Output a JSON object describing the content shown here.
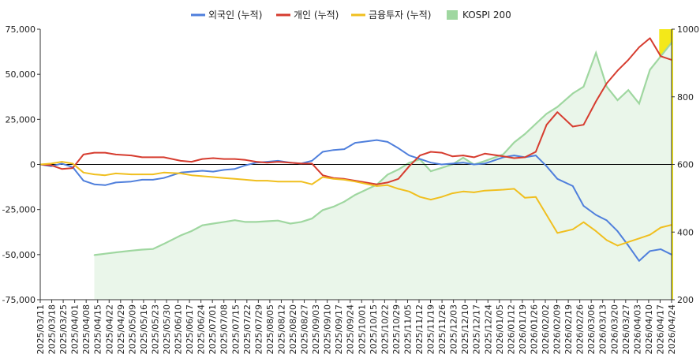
{
  "chart_data": {
    "type": "line",
    "title": "",
    "legend_position": "top-center",
    "legend": [
      {
        "name": "외국인 (누적)",
        "color": "#4f7fdc",
        "kind": "line"
      },
      {
        "name": "개인 (누적)",
        "color": "#d63c2f",
        "kind": "line"
      },
      {
        "name": "금융투자 (누적)",
        "color": "#f0bf1f",
        "kind": "line"
      },
      {
        "name": "KOSPI 200",
        "color": "#9fd7a0",
        "kind": "area"
      }
    ],
    "y_left": {
      "min": -75000,
      "max": 75000,
      "ticks": [
        -75000,
        -50000,
        -25000,
        0,
        25000,
        50000,
        75000
      ],
      "tick_labels": [
        "-75,000",
        "-50,000",
        "-25,000",
        "0",
        "25,000",
        "50,000",
        "75,000"
      ]
    },
    "y_right": {
      "min": 200,
      "max": 1000,
      "ticks": [
        200,
        400,
        600,
        800,
        1000
      ],
      "tick_labels": [
        "200",
        "400",
        "600",
        "800",
        "1000"
      ]
    },
    "x_start": "2025/03/11",
    "x_end": "2026/04/24",
    "x_tick_labels": [
      "2025/03/11",
      "2025/03/18",
      "2025/03/25",
      "2025/04/01",
      "2025/04/08",
      "2025/04/15",
      "2025/04/22",
      "2025/04/29",
      "2025/05/09",
      "2025/05/16",
      "2025/05/23",
      "2025/05/30",
      "2025/06/10",
      "2025/06/17",
      "2025/06/24",
      "2025/07/01",
      "2025/07/08",
      "2025/07/15",
      "2025/07/22",
      "2025/07/29",
      "2025/08/05",
      "2025/08/12",
      "2025/08/20",
      "2025/08/27",
      "2025/09/03",
      "2025/09/10",
      "2025/09/17",
      "2025/09/24",
      "2025/10/01",
      "2025/10/15",
      "2025/10/22",
      "2025/10/29",
      "2025/11/05",
      "2025/11/12",
      "2025/11/19",
      "2025/11/26",
      "2025/12/03",
      "2025/12/10",
      "2025/12/17",
      "2025/12/24",
      "2026/01/05",
      "2026/01/12",
      "2026/01/19",
      "2026/01/26",
      "2026/02/02",
      "2026/02/09",
      "2026/02/19",
      "2026/02/26",
      "2026/03/06",
      "2026/03/13",
      "2026/03/20",
      "2026/03/27",
      "2026/04/03",
      "2026/04/10",
      "2026/04/17",
      "2026/04/24"
    ],
    "zero_line": true,
    "highlight_band": {
      "from": "2026/04/17",
      "to": "2026/04/24",
      "color": "#f2e500"
    },
    "series": [
      {
        "name": "외국인 (누적)",
        "axis": "left",
        "points": [
          [
            "2025/03/11",
            0
          ],
          [
            "2025/03/18",
            -1000
          ],
          [
            "2025/03/25",
            500
          ],
          [
            "2025/04/01",
            -1500
          ],
          [
            "2025/04/08",
            -9000
          ],
          [
            "2025/04/15",
            -11000
          ],
          [
            "2025/04/22",
            -11500
          ],
          [
            "2025/04/29",
            -10000
          ],
          [
            "2025/05/09",
            -9500
          ],
          [
            "2025/05/16",
            -8500
          ],
          [
            "2025/05/23",
            -8500
          ],
          [
            "2025/05/30",
            -7500
          ],
          [
            "2025/06/10",
            -4500
          ],
          [
            "2025/06/17",
            -4000
          ],
          [
            "2025/06/24",
            -3500
          ],
          [
            "2025/07/01",
            -4000
          ],
          [
            "2025/07/08",
            -3000
          ],
          [
            "2025/07/15",
            -2500
          ],
          [
            "2025/07/22",
            -500
          ],
          [
            "2025/07/29",
            1000
          ],
          [
            "2025/08/05",
            1500
          ],
          [
            "2025/08/12",
            2000
          ],
          [
            "2025/08/20",
            1000
          ],
          [
            "2025/08/27",
            500
          ],
          [
            "2025/09/03",
            2000
          ],
          [
            "2025/09/10",
            7000
          ],
          [
            "2025/09/17",
            8000
          ],
          [
            "2025/09/24",
            8500
          ],
          [
            "2025/10/01",
            12000
          ],
          [
            "2025/10/15",
            13500
          ],
          [
            "2025/10/22",
            12500
          ],
          [
            "2025/10/29",
            9000
          ],
          [
            "2025/11/05",
            5000
          ],
          [
            "2025/11/12",
            3000
          ],
          [
            "2025/11/19",
            1000
          ],
          [
            "2025/11/26",
            0
          ],
          [
            "2025/12/03",
            500
          ],
          [
            "2025/12/10",
            1000
          ],
          [
            "2025/12/17",
            0
          ],
          [
            "2025/12/24",
            500
          ],
          [
            "2026/01/05",
            4000
          ],
          [
            "2026/01/12",
            5000
          ],
          [
            "2026/01/19",
            4000
          ],
          [
            "2026/01/26",
            5000
          ],
          [
            "2026/02/02",
            -1000
          ],
          [
            "2026/02/09",
            -8000
          ],
          [
            "2026/02/19",
            -12000
          ],
          [
            "2026/02/26",
            -23000
          ],
          [
            "2026/03/06",
            -28000
          ],
          [
            "2026/03/13",
            -31000
          ],
          [
            "2026/03/20",
            -37000
          ],
          [
            "2026/03/27",
            -45000
          ],
          [
            "2026/04/03",
            -53500
          ],
          [
            "2026/04/10",
            -48000
          ],
          [
            "2026/04/17",
            -47000
          ],
          [
            "2026/04/24",
            -50000
          ]
        ]
      },
      {
        "name": "개인 (누적)",
        "axis": "left",
        "points": [
          [
            "2025/03/11",
            0
          ],
          [
            "2025/03/18",
            -500
          ],
          [
            "2025/03/25",
            -2500
          ],
          [
            "2025/04/01",
            -2000
          ],
          [
            "2025/04/08",
            5500
          ],
          [
            "2025/04/15",
            6500
          ],
          [
            "2025/04/22",
            6500
          ],
          [
            "2025/04/29",
            5500
          ],
          [
            "2025/05/09",
            5000
          ],
          [
            "2025/05/16",
            4000
          ],
          [
            "2025/05/23",
            4000
          ],
          [
            "2025/05/30",
            4000
          ],
          [
            "2025/06/10",
            2000
          ],
          [
            "2025/06/17",
            1500
          ],
          [
            "2025/06/24",
            3000
          ],
          [
            "2025/07/01",
            3500
          ],
          [
            "2025/07/08",
            3000
          ],
          [
            "2025/07/15",
            3000
          ],
          [
            "2025/07/22",
            2500
          ],
          [
            "2025/07/29",
            1500
          ],
          [
            "2025/08/05",
            1000
          ],
          [
            "2025/08/12",
            1500
          ],
          [
            "2025/08/20",
            1000
          ],
          [
            "2025/08/27",
            500
          ],
          [
            "2025/09/03",
            500
          ],
          [
            "2025/09/10",
            -6000
          ],
          [
            "2025/09/17",
            -7500
          ],
          [
            "2025/09/24",
            -8000
          ],
          [
            "2025/10/01",
            -9000
          ],
          [
            "2025/10/15",
            -11000
          ],
          [
            "2025/10/22",
            -10000
          ],
          [
            "2025/10/29",
            -8000
          ],
          [
            "2025/11/05",
            -1000
          ],
          [
            "2025/11/12",
            5000
          ],
          [
            "2025/11/19",
            7000
          ],
          [
            "2025/11/26",
            6500
          ],
          [
            "2025/12/03",
            4500
          ],
          [
            "2025/12/10",
            5000
          ],
          [
            "2025/12/17",
            4000
          ],
          [
            "2025/12/24",
            6000
          ],
          [
            "2026/01/05",
            4500
          ],
          [
            "2026/01/12",
            3500
          ],
          [
            "2026/01/19",
            4000
          ],
          [
            "2026/01/26",
            7000
          ],
          [
            "2026/02/02",
            22000
          ],
          [
            "2026/02/09",
            29000
          ],
          [
            "2026/02/19",
            21000
          ],
          [
            "2026/02/26",
            22000
          ],
          [
            "2026/03/06",
            35000
          ],
          [
            "2026/03/13",
            45000
          ],
          [
            "2026/03/20",
            52000
          ],
          [
            "2026/03/27",
            58000
          ],
          [
            "2026/04/03",
            65000
          ],
          [
            "2026/04/10",
            70000
          ],
          [
            "2026/04/17",
            60000
          ],
          [
            "2026/04/24",
            58000
          ]
        ]
      },
      {
        "name": "금융투자 (누적)",
        "axis": "left",
        "points": [
          [
            "2025/03/11",
            0
          ],
          [
            "2025/03/18",
            500
          ],
          [
            "2025/03/25",
            1500
          ],
          [
            "2025/04/01",
            500
          ],
          [
            "2025/04/08",
            -4500
          ],
          [
            "2025/04/15",
            -5500
          ],
          [
            "2025/04/22",
            -6000
          ],
          [
            "2025/04/29",
            -5000
          ],
          [
            "2025/05/09",
            -5500
          ],
          [
            "2025/05/16",
            -5500
          ],
          [
            "2025/05/23",
            -5500
          ],
          [
            "2025/05/30",
            -4500
          ],
          [
            "2025/06/10",
            -5000
          ],
          [
            "2025/06/17",
            -6000
          ],
          [
            "2025/06/24",
            -6500
          ],
          [
            "2025/07/01",
            -7000
          ],
          [
            "2025/07/08",
            -7500
          ],
          [
            "2025/07/15",
            -8000
          ],
          [
            "2025/07/22",
            -8500
          ],
          [
            "2025/07/29",
            -9000
          ],
          [
            "2025/08/05",
            -9000
          ],
          [
            "2025/08/12",
            -9500
          ],
          [
            "2025/08/20",
            -9500
          ],
          [
            "2025/08/27",
            -9500
          ],
          [
            "2025/09/03",
            -11000
          ],
          [
            "2025/09/10",
            -7000
          ],
          [
            "2025/09/17",
            -8000
          ],
          [
            "2025/09/24",
            -8500
          ],
          [
            "2025/10/01",
            -9500
          ],
          [
            "2025/10/15",
            -12000
          ],
          [
            "2025/10/22",
            -11500
          ],
          [
            "2025/10/29",
            -13500
          ],
          [
            "2025/11/05",
            -15000
          ],
          [
            "2025/11/12",
            -18000
          ],
          [
            "2025/11/19",
            -19500
          ],
          [
            "2025/11/26",
            -18000
          ],
          [
            "2025/12/03",
            -16000
          ],
          [
            "2025/12/10",
            -15000
          ],
          [
            "2025/12/17",
            -15500
          ],
          [
            "2025/12/24",
            -14500
          ],
          [
            "2026/01/05",
            -14000
          ],
          [
            "2026/01/12",
            -13500
          ],
          [
            "2026/01/19",
            -18500
          ],
          [
            "2026/01/26",
            -18000
          ],
          [
            "2026/02/02",
            -28000
          ],
          [
            "2026/02/09",
            -38000
          ],
          [
            "2026/02/19",
            -36000
          ],
          [
            "2026/02/26",
            -32000
          ],
          [
            "2026/03/06",
            -37000
          ],
          [
            "2026/03/13",
            -42000
          ],
          [
            "2026/03/20",
            -45000
          ],
          [
            "2026/03/27",
            -43000
          ],
          [
            "2026/04/03",
            -41000
          ],
          [
            "2026/04/10",
            -39000
          ],
          [
            "2026/04/17",
            -35000
          ],
          [
            "2026/04/24",
            -33500
          ]
        ]
      },
      {
        "name": "KOSPI 200",
        "axis": "right",
        "points": [
          [
            "2025/04/15",
            332
          ],
          [
            "2025/04/22",
            336
          ],
          [
            "2025/04/29",
            340
          ],
          [
            "2025/05/09",
            345
          ],
          [
            "2025/05/16",
            348
          ],
          [
            "2025/05/23",
            350
          ],
          [
            "2025/05/30",
            365
          ],
          [
            "2025/06/10",
            390
          ],
          [
            "2025/06/17",
            403
          ],
          [
            "2025/06/24",
            420
          ],
          [
            "2025/07/01",
            425
          ],
          [
            "2025/07/08",
            430
          ],
          [
            "2025/07/15",
            435
          ],
          [
            "2025/07/22",
            430
          ],
          [
            "2025/07/29",
            430
          ],
          [
            "2025/08/05",
            432
          ],
          [
            "2025/08/12",
            434
          ],
          [
            "2025/08/20",
            425
          ],
          [
            "2025/08/27",
            430
          ],
          [
            "2025/09/03",
            440
          ],
          [
            "2025/09/10",
            465
          ],
          [
            "2025/09/17",
            475
          ],
          [
            "2025/09/24",
            490
          ],
          [
            "2025/10/01",
            510
          ],
          [
            "2025/10/15",
            540
          ],
          [
            "2025/10/22",
            570
          ],
          [
            "2025/10/29",
            585
          ],
          [
            "2025/11/05",
            605
          ],
          [
            "2025/11/12",
            615
          ],
          [
            "2025/11/19",
            580
          ],
          [
            "2025/11/26",
            590
          ],
          [
            "2025/12/03",
            600
          ],
          [
            "2025/12/10",
            620
          ],
          [
            "2025/12/17",
            600
          ],
          [
            "2025/12/24",
            610
          ],
          [
            "2026/01/05",
            630
          ],
          [
            "2026/01/12",
            665
          ],
          [
            "2026/01/19",
            690
          ],
          [
            "2026/01/26",
            720
          ],
          [
            "2026/02/02",
            750
          ],
          [
            "2026/02/09",
            770
          ],
          [
            "2026/02/19",
            810
          ],
          [
            "2026/02/26",
            830
          ],
          [
            "2026/03/06",
            930
          ],
          [
            "2026/03/13",
            830
          ],
          [
            "2026/03/20",
            790
          ],
          [
            "2026/03/27",
            820
          ],
          [
            "2026/04/03",
            780
          ],
          [
            "2026/04/10",
            880
          ],
          [
            "2026/04/17",
            920
          ],
          [
            "2026/04/24",
            960
          ]
        ]
      }
    ]
  }
}
